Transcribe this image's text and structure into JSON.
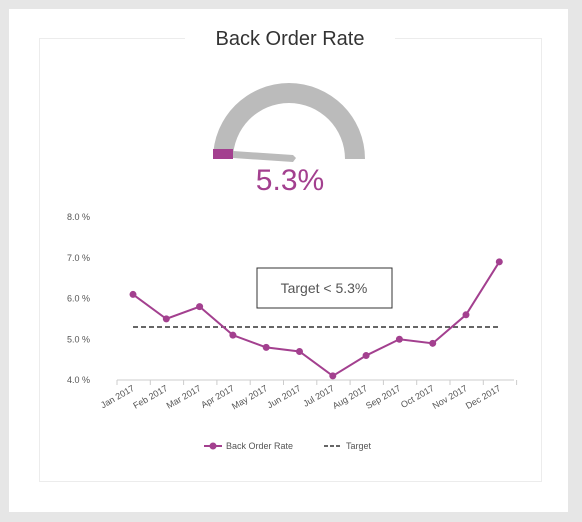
{
  "title": "Back Order Rate",
  "gauge": {
    "value_text": "5.3%",
    "value": 5.3,
    "color": "#a3408f",
    "track_color": "#bbbbbb",
    "needle_color": "#bbbbbb"
  },
  "chart_data": {
    "type": "line",
    "title": "Back Order Rate",
    "categories": [
      "Jan 2017",
      "Feb 2017",
      "Mar 2017",
      "Apr 2017",
      "May 2017",
      "Jun 2017",
      "Jul 2017",
      "Aug 2017",
      "Sep 2017",
      "Oct 2017",
      "Nov 2017",
      "Dec 2017"
    ],
    "series": [
      {
        "name": "Back Order Rate",
        "color": "#a3408f",
        "style": "solid-with-markers",
        "values": [
          6.1,
          5.5,
          5.8,
          5.1,
          4.8,
          4.7,
          4.1,
          4.6,
          5.0,
          4.9,
          5.6,
          6.9
        ]
      },
      {
        "name": "Target",
        "color": "#333333",
        "style": "dashed",
        "values": [
          5.3,
          5.3,
          5.3,
          5.3,
          5.3,
          5.3,
          5.3,
          5.3,
          5.3,
          5.3,
          5.3,
          5.3
        ]
      }
    ],
    "yticks": [
      "4.0 %",
      "5.0 %",
      "6.0 %",
      "7.0 %",
      "8.0 %"
    ],
    "ylim": [
      4.0,
      8.0
    ],
    "annotation": "Target < 5.3%",
    "legend_position": "bottom-center",
    "grid": false
  }
}
